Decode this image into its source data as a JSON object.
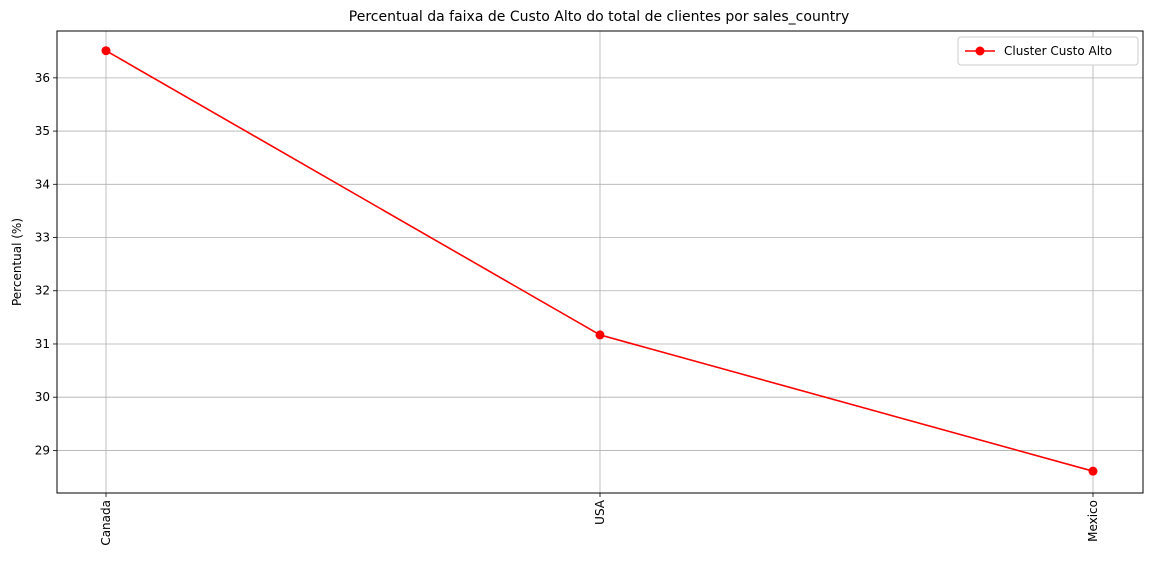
{
  "chart_data": {
    "type": "line",
    "title": "Percentual da faixa de Custo Alto do total de clientes por sales_country",
    "xlabel": "",
    "ylabel": "Percentual (%)",
    "categories": [
      "Canada",
      "USA",
      "Mexico"
    ],
    "series": [
      {
        "name": "Cluster Custo Alto",
        "values": [
          36.51,
          31.17,
          28.61
        ],
        "color": "#ff0000",
        "marker": "circle"
      }
    ],
    "ylim": [
      28.2,
      36.88
    ],
    "yticks": [
      29,
      30,
      31,
      32,
      33,
      34,
      35,
      36
    ],
    "ytick_labels": [
      "29",
      "30",
      "31",
      "32",
      "33",
      "34",
      "35",
      "36"
    ],
    "x_tick_rotation": "vertical",
    "grid": true,
    "grid_color": "#b0b0b0",
    "legend": {
      "position": "top-right"
    }
  }
}
